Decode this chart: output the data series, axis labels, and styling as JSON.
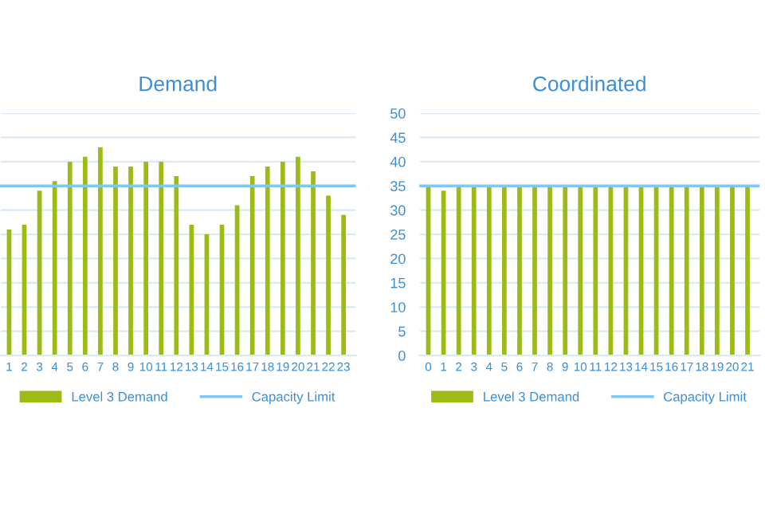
{
  "chart_data": [
    {
      "type": "bar",
      "title": "Demand",
      "categories": [
        "1",
        "2",
        "3",
        "4",
        "5",
        "6",
        "7",
        "8",
        "9",
        "10",
        "11",
        "12",
        "13",
        "14",
        "15",
        "16",
        "17",
        "18",
        "19",
        "20",
        "21",
        "22",
        "23"
      ],
      "series": [
        {
          "name": "Level 3 Demand",
          "color": "#9cbb14",
          "values": [
            26,
            27,
            34,
            36,
            40,
            41,
            43,
            39,
            39,
            40,
            40,
            37,
            27,
            25,
            27,
            31,
            37,
            39,
            40,
            41,
            38,
            33,
            29
          ]
        }
      ],
      "ref_lines": [
        {
          "axis": "y",
          "value": 35,
          "label": "Capacity Limit",
          "color": "#7fc8f2"
        }
      ],
      "ylim": [
        0,
        50
      ],
      "yticks": [
        0,
        5,
        10,
        15,
        20,
        25,
        30,
        35,
        40,
        45,
        50
      ],
      "tick_labels": "x",
      "grid": "y",
      "legend": "bottom"
    },
    {
      "type": "bar",
      "title": "Coordinated",
      "categories": [
        "0",
        "1",
        "2",
        "3",
        "4",
        "5",
        "6",
        "7",
        "8",
        "9",
        "10",
        "11",
        "12",
        "13",
        "14",
        "15",
        "16",
        "17",
        "18",
        "19",
        "20",
        "21"
      ],
      "series": [
        {
          "name": "Level 3 Demand",
          "color": "#9cbb14",
          "values": [
            35,
            34,
            35,
            35,
            35,
            35,
            35,
            35,
            35,
            35,
            35,
            35,
            35,
            35,
            35,
            35,
            35,
            35,
            35,
            35,
            35,
            35
          ]
        }
      ],
      "ref_lines": [
        {
          "axis": "y",
          "value": 35,
          "label": "Capacity Limit",
          "color": "#7fc8f2"
        }
      ],
      "ylim": [
        0,
        50
      ],
      "yticks": [
        0,
        5,
        10,
        15,
        20,
        25,
        30,
        35,
        40,
        45,
        50
      ],
      "grid": "y",
      "legend": "bottom"
    }
  ]
}
